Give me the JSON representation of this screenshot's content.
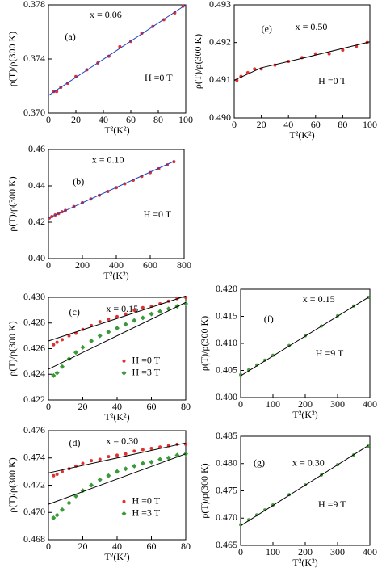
{
  "chart_data": [
    {
      "type": "scatter",
      "label": "(a)",
      "annotation": "x = 0.06",
      "field": "H =0 T",
      "x_label": "T²(K²)",
      "y_label": "ρ(T)/ρ(300 K)",
      "xlim": [
        0,
        100
      ],
      "xticks": [
        0,
        20,
        40,
        60,
        80,
        100
      ],
      "ylim": [
        0.37,
        0.378
      ],
      "yticks": [
        {
          "value": 0.37,
          "label": "0.370"
        },
        0.374,
        0.378
      ],
      "fit_color": "#2040c0",
      "series": [
        {
          "color": "#e03030",
          "marker": "circle",
          "x": [
            4,
            6,
            9,
            14,
            20,
            28,
            36,
            44,
            52,
            60,
            68,
            76,
            84,
            92,
            98
          ],
          "values": [
            0.3716,
            0.3716,
            0.3719,
            0.3722,
            0.3727,
            0.3732,
            0.3737,
            0.3742,
            0.3749,
            0.3753,
            0.3759,
            0.3764,
            0.3769,
            0.3774,
            0.3779
          ],
          "fit": {
            "x": [
              0,
              100
            ],
            "values": [
              0.3713,
              0.378
            ]
          }
        }
      ]
    },
    {
      "type": "scatter",
      "label": "(e)",
      "annotation": "x = 0.50",
      "field": "H =0 T",
      "x_label": "T²(K²)",
      "y_label": "ρ(T)/ρ(300 K)",
      "xlim": [
        0,
        100
      ],
      "xticks": [
        0,
        20,
        40,
        60,
        80,
        100
      ],
      "ylim": [
        0.49,
        0.493
      ],
      "yticks": [
        {
          "value": 0.49,
          "label": "0.490"
        },
        0.491,
        0.492,
        0.493
      ],
      "fit_color": "#000000",
      "series": [
        {
          "color": "#e03030",
          "marker": "circle",
          "x": [
            2,
            5,
            10,
            15,
            20,
            30,
            40,
            50,
            60,
            70,
            80,
            90,
            98
          ],
          "values": [
            0.491,
            0.4911,
            0.4912,
            0.4913,
            0.4913,
            0.4914,
            0.4915,
            0.4916,
            0.4917,
            0.4917,
            0.4918,
            0.4919,
            0.492
          ],
          "fit": {
            "x": [
              0,
              20,
              50,
              100
            ],
            "values": [
              0.491,
              0.49133,
              0.49158,
              0.49202
            ]
          }
        }
      ]
    },
    {
      "type": "scatter",
      "label": "(b)",
      "annotation": "x = 0.10",
      "field": "H =0 T",
      "x_label": "T²(K²)",
      "y_label": "ρ(T)/ρ(300 K)",
      "xlim": [
        0,
        800
      ],
      "xticks": [
        0,
        200,
        400,
        600,
        800
      ],
      "ylim": [
        0.4,
        0.46
      ],
      "yticks": [
        {
          "value": 0.4,
          "label": "0.40"
        },
        0.42,
        0.44,
        0.46
      ],
      "fit_color": "#2040c0",
      "series": [
        {
          "color": "#e03030",
          "marker": "circle",
          "x": [
            5,
            20,
            40,
            60,
            80,
            100,
            150,
            200,
            250,
            300,
            350,
            400,
            450,
            500,
            550,
            600,
            650,
            700,
            740
          ],
          "values": [
            0.4223,
            0.4231,
            0.424,
            0.4248,
            0.4257,
            0.4265,
            0.4286,
            0.4307,
            0.4328,
            0.4348,
            0.4369,
            0.439,
            0.4411,
            0.4431,
            0.4452,
            0.4473,
            0.4494,
            0.4515,
            0.4533
          ],
          "fit": {
            "x": [
              0,
              740
            ],
            "values": [
              0.4222,
              0.4535
            ]
          }
        }
      ]
    },
    {
      "type": "scatter",
      "label": "(c)",
      "annotation": "x = 0.15",
      "x_label": "T²(K²)",
      "y_label": "ρ(T)/ρ(300 K)",
      "xlim": [
        0,
        80
      ],
      "xticks": [
        0,
        20,
        40,
        60,
        80
      ],
      "ylim": [
        0.422,
        0.43
      ],
      "yticks": [
        0.422,
        0.424,
        0.426,
        0.428,
        {
          "value": 0.43,
          "label": "0.430"
        }
      ],
      "fit_color": "#000000",
      "series": [
        {
          "name": "H =0 T",
          "color": "#e03030",
          "marker": "circle",
          "x": [
            3,
            5,
            8,
            12,
            16,
            20,
            25,
            30,
            35,
            40,
            45,
            50,
            55,
            60,
            65,
            70,
            75,
            80
          ],
          "values": [
            0.4263,
            0.4265,
            0.4267,
            0.427,
            0.4272,
            0.4275,
            0.4278,
            0.4281,
            0.4283,
            0.4285,
            0.4287,
            0.429,
            0.4292,
            0.4293,
            0.4295,
            0.4297,
            0.4299,
            0.43
          ],
          "fit": {
            "x": [
              0,
              80
            ],
            "values": [
              0.4266,
              0.4301
            ]
          }
        },
        {
          "name": "H =3 T",
          "color": "#3a9a3a",
          "marker": "diamond",
          "x": [
            3,
            5,
            8,
            12,
            16,
            20,
            25,
            30,
            35,
            40,
            45,
            50,
            55,
            60,
            65,
            70,
            75,
            80
          ],
          "values": [
            0.4239,
            0.4241,
            0.4246,
            0.4252,
            0.4257,
            0.4261,
            0.4266,
            0.427,
            0.4273,
            0.4276,
            0.4279,
            0.4282,
            0.4284,
            0.4287,
            0.4289,
            0.4291,
            0.4293,
            0.4295
          ],
          "fit": {
            "x": [
              0,
              80
            ],
            "values": [
              0.4244,
              0.4296
            ]
          }
        }
      ]
    },
    {
      "type": "scatter",
      "label": "(f)",
      "annotation": "x = 0.15",
      "field": "H =9 T",
      "x_label": "T²(K²)",
      "y_label": "ρ(T)/ρ(300 K)",
      "xlim": [
        0,
        400
      ],
      "xticks": [
        0,
        100,
        200,
        300,
        400
      ],
      "ylim": [
        0.4,
        0.42
      ],
      "yticks": [
        {
          "value": 0.4,
          "label": "0.400"
        },
        0.405,
        {
          "value": 0.41,
          "label": "0.410"
        },
        0.415,
        {
          "value": 0.42,
          "label": "0.420"
        }
      ],
      "fit_color": "#000000",
      "series": [
        {
          "color": "#4a9a40",
          "marker": "circle",
          "x": [
            0,
            25,
            50,
            75,
            100,
            150,
            200,
            250,
            300,
            350,
            395
          ],
          "values": [
            0.4042,
            0.4051,
            0.406,
            0.4069,
            0.4078,
            0.4096,
            0.4114,
            0.4132,
            0.4151,
            0.4169,
            0.4185
          ],
          "fit": {
            "x": [
              0,
              395
            ],
            "values": [
              0.404,
              0.4185
            ]
          }
        }
      ]
    },
    {
      "type": "scatter",
      "label": "(d)",
      "annotation": "x = 0.30",
      "x_label": "T²(K²)",
      "y_label": "ρ(T)/ρ(300 K)",
      "xlim": [
        0,
        80
      ],
      "xticks": [
        0,
        20,
        40,
        60,
        80
      ],
      "ylim": [
        0.468,
        0.476
      ],
      "yticks": [
        0.468,
        {
          "value": 0.47,
          "label": "0.470"
        },
        0.472,
        0.474,
        0.476
      ],
      "fit_color": "#000000",
      "series": [
        {
          "name": "H =0 T",
          "color": "#e03030",
          "marker": "circle",
          "x": [
            3,
            5,
            8,
            12,
            16,
            20,
            25,
            30,
            35,
            40,
            45,
            50,
            55,
            60,
            65,
            70,
            75,
            80
          ],
          "values": [
            0.4727,
            0.4728,
            0.473,
            0.4732,
            0.4734,
            0.4736,
            0.4738,
            0.4739,
            0.4741,
            0.4742,
            0.4743,
            0.4745,
            0.4746,
            0.4747,
            0.4748,
            0.4749,
            0.475,
            0.475
          ],
          "fit": {
            "x": [
              0,
              80
            ],
            "values": [
              0.4729,
              0.4751
            ]
          }
        },
        {
          "name": "H =3 T",
          "color": "#3a9a3a",
          "marker": "diamond",
          "x": [
            3,
            5,
            8,
            12,
            16,
            20,
            25,
            30,
            35,
            40,
            45,
            50,
            55,
            60,
            65,
            70,
            75,
            80
          ],
          "values": [
            0.4696,
            0.4698,
            0.4702,
            0.4707,
            0.4712,
            0.4716,
            0.472,
            0.4724,
            0.4727,
            0.473,
            0.4732,
            0.4734,
            0.4736,
            0.4737,
            0.4739,
            0.474,
            0.4742,
            0.4743
          ],
          "fit": {
            "x": [
              0,
              80
            ],
            "values": [
              0.4706,
              0.4743
            ]
          }
        }
      ]
    },
    {
      "type": "scatter",
      "label": "(g)",
      "annotation": "x = 0.30",
      "field": "H =9 T",
      "x_label": "T²(K²)",
      "y_label": "ρ(T)/ρ(300 K)",
      "xlim": [
        0,
        400
      ],
      "xticks": [
        0,
        100,
        200,
        300,
        400
      ],
      "ylim": [
        0.465,
        0.485
      ],
      "yticks": [
        0.465,
        {
          "value": 0.47,
          "label": "0.470"
        },
        0.475,
        {
          "value": 0.48,
          "label": "0.480"
        },
        0.485
      ],
      "fit_color": "#000000",
      "series": [
        {
          "color": "#4a9a40",
          "marker": "circle",
          "x": [
            0,
            25,
            50,
            75,
            100,
            150,
            200,
            250,
            300,
            350,
            395
          ],
          "values": [
            0.4688,
            0.4697,
            0.4706,
            0.4715,
            0.4724,
            0.4743,
            0.4761,
            0.4779,
            0.4798,
            0.4816,
            0.4832
          ],
          "fit": {
            "x": [
              0,
              395
            ],
            "values": [
              0.4686,
              0.4833
            ]
          }
        }
      ]
    }
  ]
}
